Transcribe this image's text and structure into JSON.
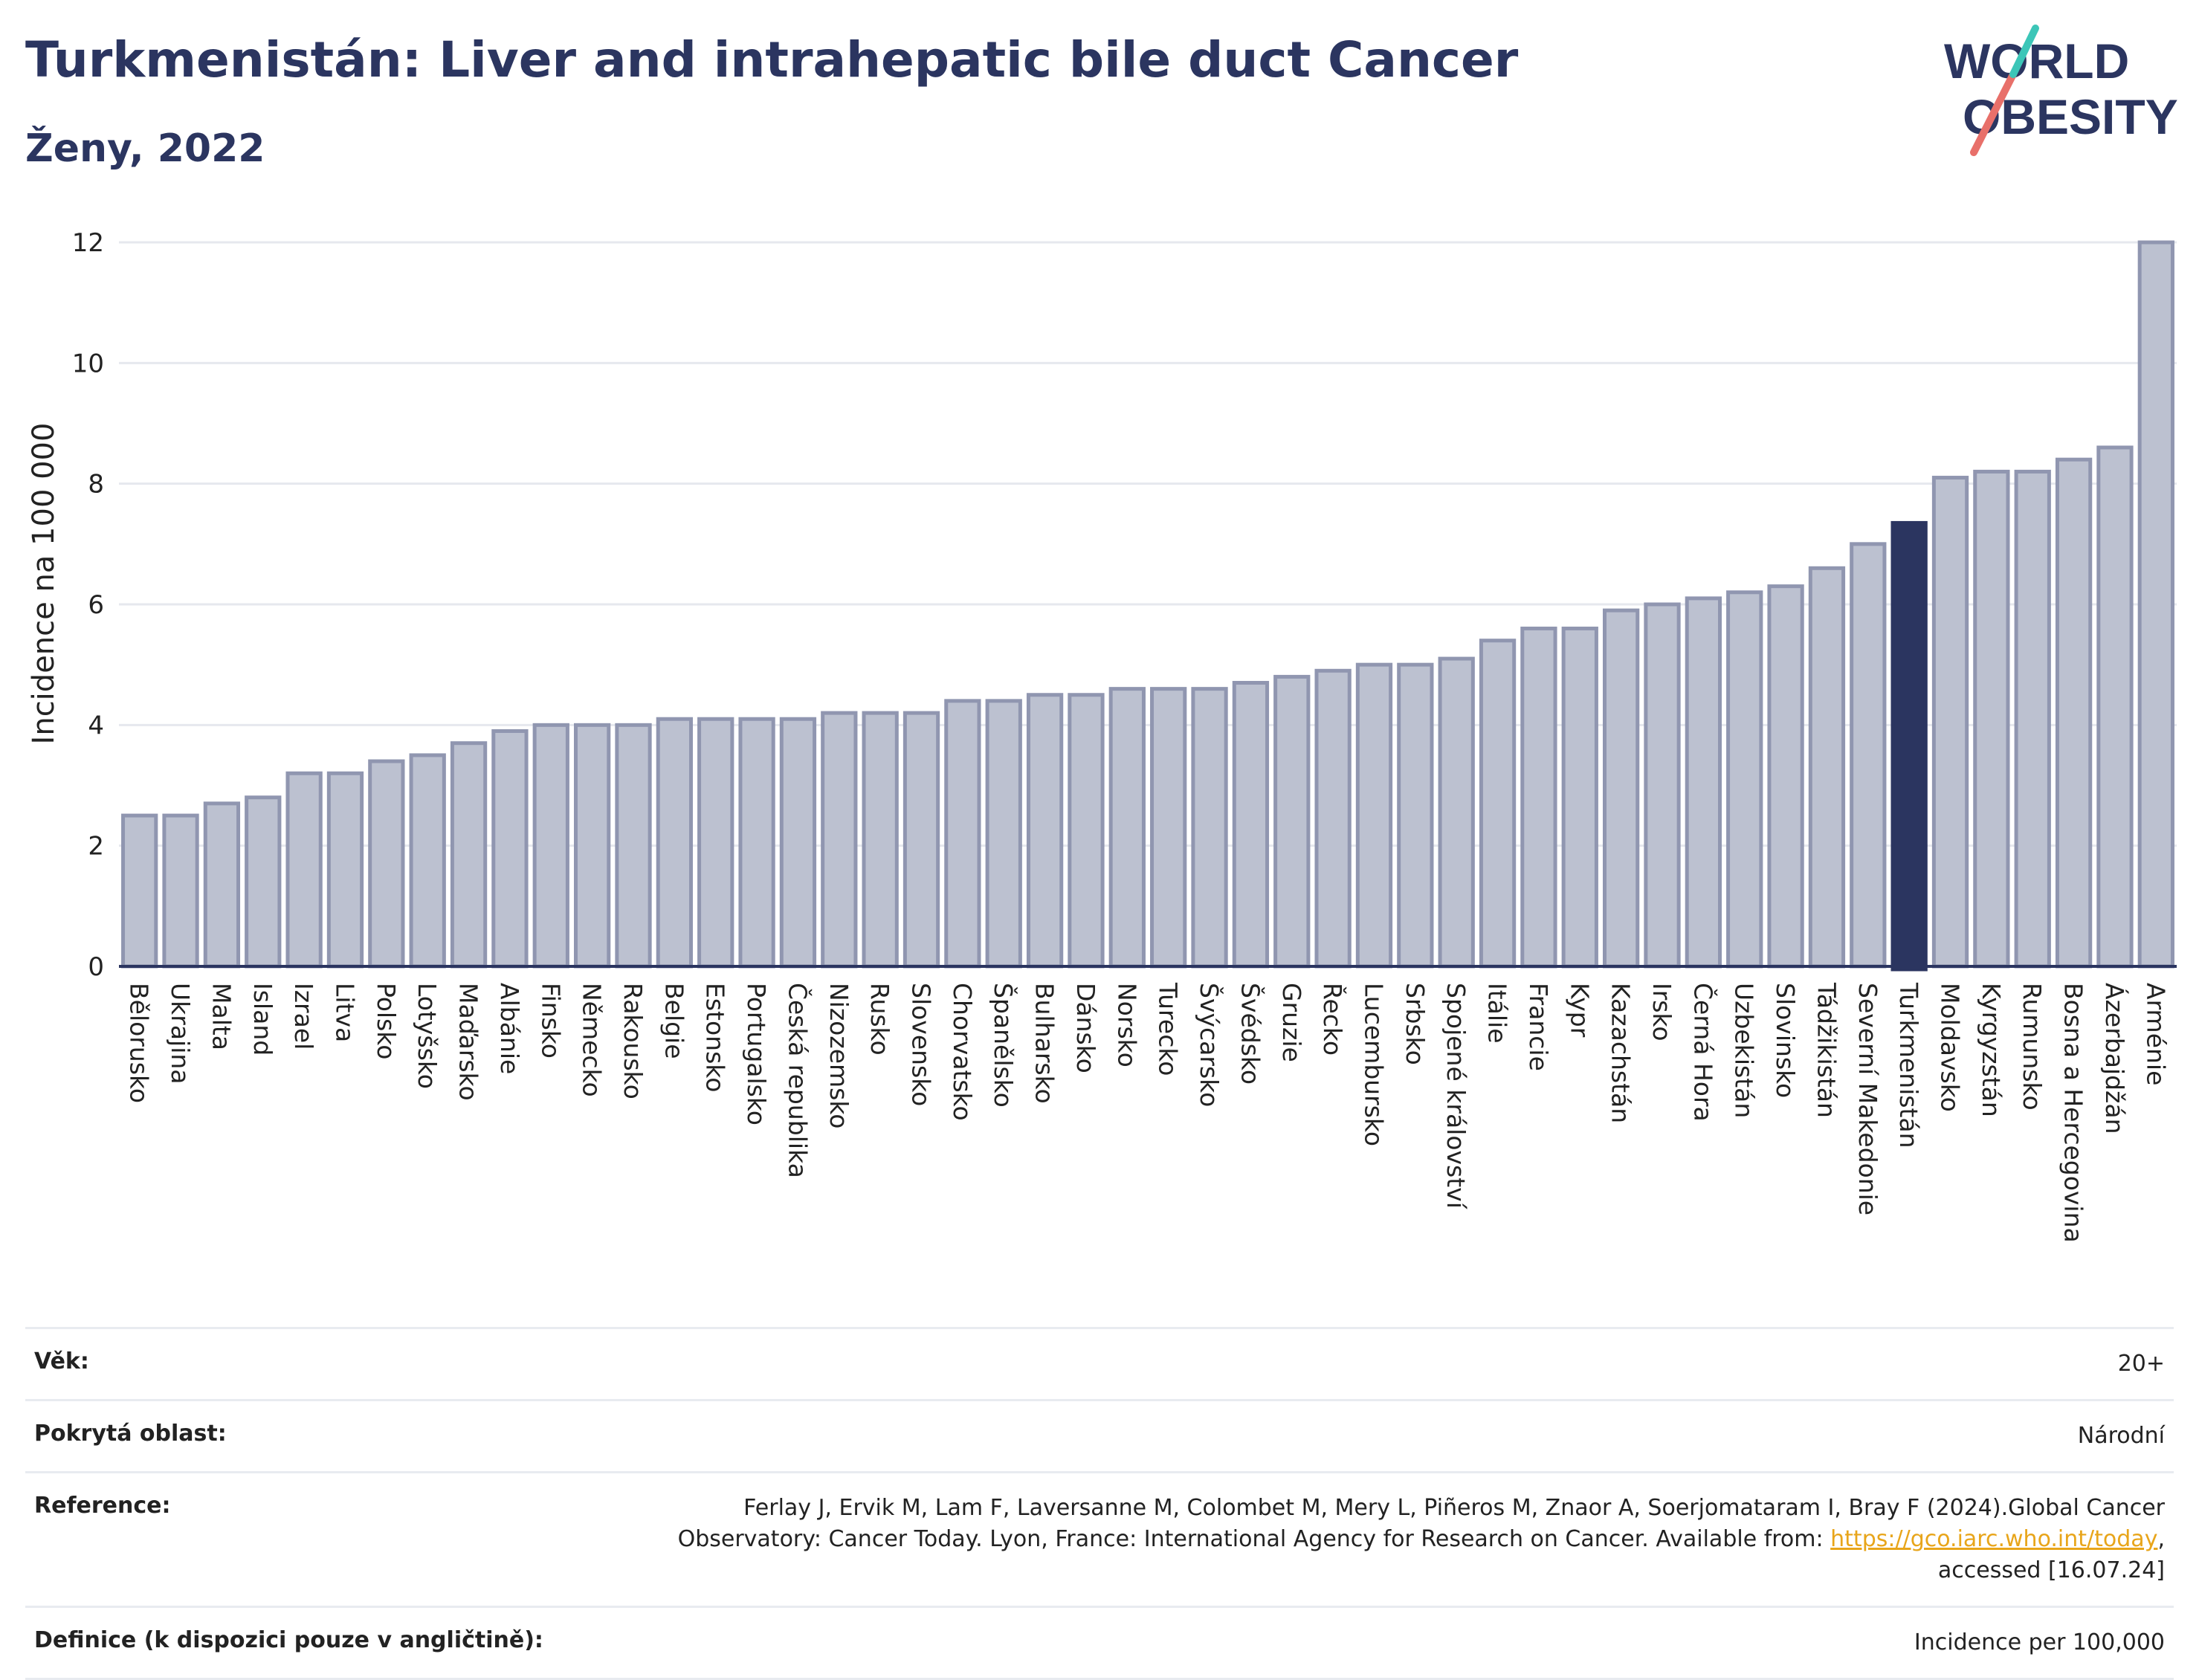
{
  "header": {
    "title": "Turkmenistán: Liver and intrahepatic bile duct Cancer",
    "subtitle": "Ženy, 2022"
  },
  "logo": {
    "line1": "WORLD",
    "line2": "OBESITY",
    "icon": "world-obesity-logo"
  },
  "chart_data": {
    "type": "bar",
    "ylabel": "Incidence na 100 000",
    "ylim": [
      0,
      12
    ],
    "yticks": [
      0,
      2,
      4,
      6,
      8,
      10,
      12
    ],
    "highlight": "Turkmenistán",
    "colors": {
      "bar": "#bcc1d0",
      "bar_edge": "#9096b0",
      "highlight": "#2b3560"
    },
    "grid": true,
    "categories": [
      "Bělorusko",
      "Ukrajina",
      "Malta",
      "Island",
      "Izrael",
      "Litva",
      "Polsko",
      "Lotyšsko",
      "Maďarsko",
      "Albánie",
      "Finsko",
      "Německo",
      "Rakousko",
      "Belgie",
      "Estonsko",
      "Portugalsko",
      "Česká republika",
      "Nizozemsko",
      "Rusko",
      "Slovensko",
      "Chorvatsko",
      "Španělsko",
      "Bulharsko",
      "Dánsko",
      "Norsko",
      "Turecko",
      "Švýcarsko",
      "Švédsko",
      "Gruzie",
      "Řecko",
      "Lucembursko",
      "Srbsko",
      "Spojené království",
      "Itálie",
      "Francie",
      "Kypr",
      "Kazachstán",
      "Irsko",
      "Černá Hora",
      "Uzbekistán",
      "Slovinsko",
      "Tádžikistán",
      "Severní Makedonie",
      "Turkmenistán",
      "Moldavsko",
      "Kyrgyzstán",
      "Rumunsko",
      "Bosna a Hercegovina",
      "Ázerbajdžán",
      "Arménie"
    ],
    "values": [
      2.5,
      2.5,
      2.7,
      2.8,
      3.2,
      3.2,
      3.4,
      3.5,
      3.7,
      3.9,
      4.0,
      4.0,
      4.0,
      4.1,
      4.1,
      4.1,
      4.1,
      4.2,
      4.2,
      4.2,
      4.4,
      4.4,
      4.5,
      4.5,
      4.6,
      4.6,
      4.6,
      4.7,
      4.8,
      4.9,
      5.0,
      5.0,
      5.1,
      5.4,
      5.6,
      5.6,
      5.9,
      6.0,
      6.1,
      6.2,
      6.3,
      6.6,
      7.0,
      7.35,
      8.1,
      8.2,
      8.2,
      8.4,
      8.6,
      12.0
    ]
  },
  "meta": {
    "age_label": "Věk:",
    "age_value": "20+",
    "area_label": "Pokrytá oblast:",
    "area_value": "Národní",
    "ref_label": "Reference:",
    "ref_text": "Ferlay J, Ervik M, Lam F, Laversanne M, Colombet M, Mery L, Piñeros M, Znaor A, Soerjomataram I, Bray F (2024).Global Cancer Observatory: Cancer Today. Lyon, France: International Agency for Research on Cancer. Available from: ",
    "ref_link": "https://gco.iarc.who.int/today",
    "ref_tail": ", accessed [16.07.24]",
    "def_label": "Definice (k dispozici pouze v angličtině):",
    "def_value": "Incidence per 100,000"
  }
}
